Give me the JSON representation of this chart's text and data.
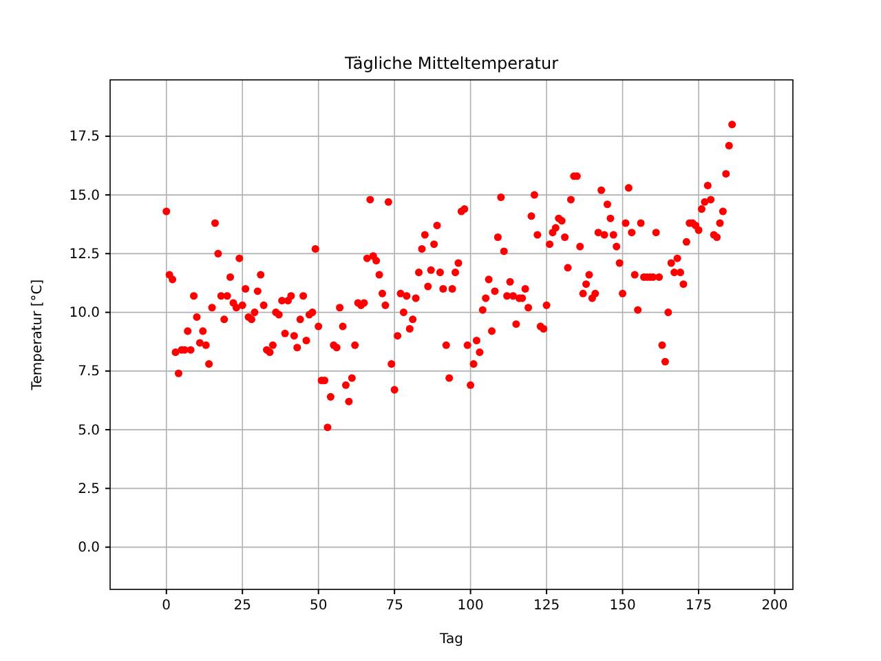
{
  "chart_data": {
    "type": "scatter",
    "title": "Tägliche Mitteltemperatur",
    "xlabel": "Tag",
    "ylabel": "Temperatur [°C]",
    "xlim": [
      -18.5,
      206
    ],
    "ylim": [
      -1.8,
      19.9
    ],
    "xticks": [
      0,
      25,
      50,
      75,
      100,
      125,
      150,
      175,
      200
    ],
    "yticks": [
      {
        "value": 0,
        "label": "0.0"
      },
      {
        "value": 2.5,
        "label": "2.5"
      },
      {
        "value": 5,
        "label": "5.0"
      },
      {
        "value": 7.5,
        "label": "7.5"
      },
      {
        "value": 10,
        "label": "10.0"
      },
      {
        "value": 12.5,
        "label": "12.5"
      },
      {
        "value": 15,
        "label": "15.0"
      },
      {
        "value": 17.5,
        "label": "17.5"
      }
    ],
    "grid": true,
    "marker": "circle",
    "series": [
      {
        "color": "#ff0000",
        "x": [
          0,
          1,
          2,
          3,
          4,
          5,
          6,
          7,
          8,
          9,
          10,
          11,
          12,
          13,
          14,
          15,
          16,
          17,
          18,
          19,
          20,
          21,
          22,
          23,
          24,
          25,
          26,
          27,
          28,
          29,
          30,
          31,
          32,
          33,
          34,
          35,
          36,
          37,
          38,
          39,
          40,
          41,
          42,
          43,
          44,
          45,
          46,
          47,
          48,
          49,
          50,
          51,
          52,
          53,
          54,
          55,
          56,
          57,
          58,
          59,
          60,
          61,
          62,
          63,
          64,
          65,
          66,
          67,
          68,
          69,
          70,
          71,
          72,
          73,
          74,
          75,
          76,
          77,
          78,
          79,
          80,
          81,
          82,
          83,
          84,
          85,
          86,
          87,
          88,
          89,
          90,
          91,
          92,
          93,
          94,
          95,
          96,
          97,
          98,
          99,
          100,
          101,
          102,
          103,
          104,
          105,
          106,
          107,
          108,
          109,
          110,
          111,
          112,
          113,
          114,
          115,
          116,
          117,
          118,
          119,
          120,
          121,
          122,
          123,
          124,
          125,
          126,
          127,
          128,
          129,
          130,
          131,
          132,
          133,
          134,
          135,
          136,
          137,
          138,
          139,
          140,
          141,
          142,
          143,
          144,
          145,
          146,
          147,
          148,
          149,
          150,
          151,
          152,
          153,
          154,
          155,
          156,
          157,
          158,
          159,
          160,
          161,
          162,
          163,
          164,
          165,
          166,
          167,
          168,
          169,
          170,
          171,
          172,
          173,
          174,
          175,
          176,
          177,
          178,
          179,
          180,
          181,
          182,
          183,
          184,
          185,
          186
        ],
        "values": [
          14.3,
          11.6,
          11.4,
          8.3,
          7.4,
          8.4,
          8.4,
          9.2,
          8.4,
          10.7,
          9.8,
          8.7,
          9.2,
          8.6,
          7.8,
          10.2,
          13.8,
          12.5,
          10.7,
          9.7,
          10.7,
          11.5,
          10.4,
          10.2,
          12.3,
          10.3,
          11.0,
          9.8,
          9.7,
          10.0,
          10.9,
          11.6,
          10.3,
          8.4,
          8.3,
          8.6,
          10.0,
          9.9,
          10.5,
          9.1,
          10.5,
          10.7,
          9.0,
          8.5,
          9.7,
          10.7,
          8.8,
          9.9,
          10.0,
          12.7,
          9.4,
          7.1,
          7.1,
          5.1,
          6.4,
          8.6,
          8.5,
          10.2,
          9.4,
          6.9,
          6.2,
          7.2,
          8.6,
          10.4,
          10.3,
          10.4,
          12.3,
          14.8,
          12.4,
          12.2,
          11.6,
          10.8,
          10.3,
          14.7,
          7.8,
          6.7,
          9.0,
          10.8,
          10.0,
          10.7,
          9.3,
          9.7,
          10.6,
          11.7,
          12.7,
          13.3,
          11.1,
          11.8,
          12.9,
          13.7,
          11.7,
          11.0,
          8.6,
          7.2,
          11.0,
          11.7,
          12.1,
          14.3,
          14.4,
          8.6,
          6.9,
          7.8,
          8.8,
          8.3,
          10.1,
          10.6,
          11.4,
          9.2,
          10.9,
          13.2,
          14.9,
          12.6,
          10.7,
          11.3,
          10.7,
          9.5,
          10.6,
          10.6,
          11.0,
          10.2,
          14.1,
          15.0,
          13.3,
          9.4,
          9.3,
          10.3,
          12.9,
          13.4,
          13.6,
          14.0,
          13.9,
          13.2,
          11.9,
          14.8,
          15.8,
          15.8,
          12.8,
          10.8,
          11.2,
          11.6,
          10.6,
          10.8,
          13.4,
          15.2,
          13.3,
          14.6,
          14.0,
          13.3,
          12.8,
          12.1,
          10.8,
          13.8,
          15.3,
          13.4,
          11.6,
          10.1,
          13.8,
          11.5,
          11.5,
          11.5,
          11.5,
          13.4,
          11.5,
          8.6,
          7.9,
          10.0,
          12.1,
          11.7,
          12.3,
          11.7,
          11.2,
          13.0,
          13.8,
          13.8,
          13.7,
          13.5,
          14.4,
          14.7,
          15.4,
          14.8,
          13.3,
          13.2,
          13.8,
          14.3,
          15.9,
          17.1,
          18.0
        ]
      }
    ]
  }
}
